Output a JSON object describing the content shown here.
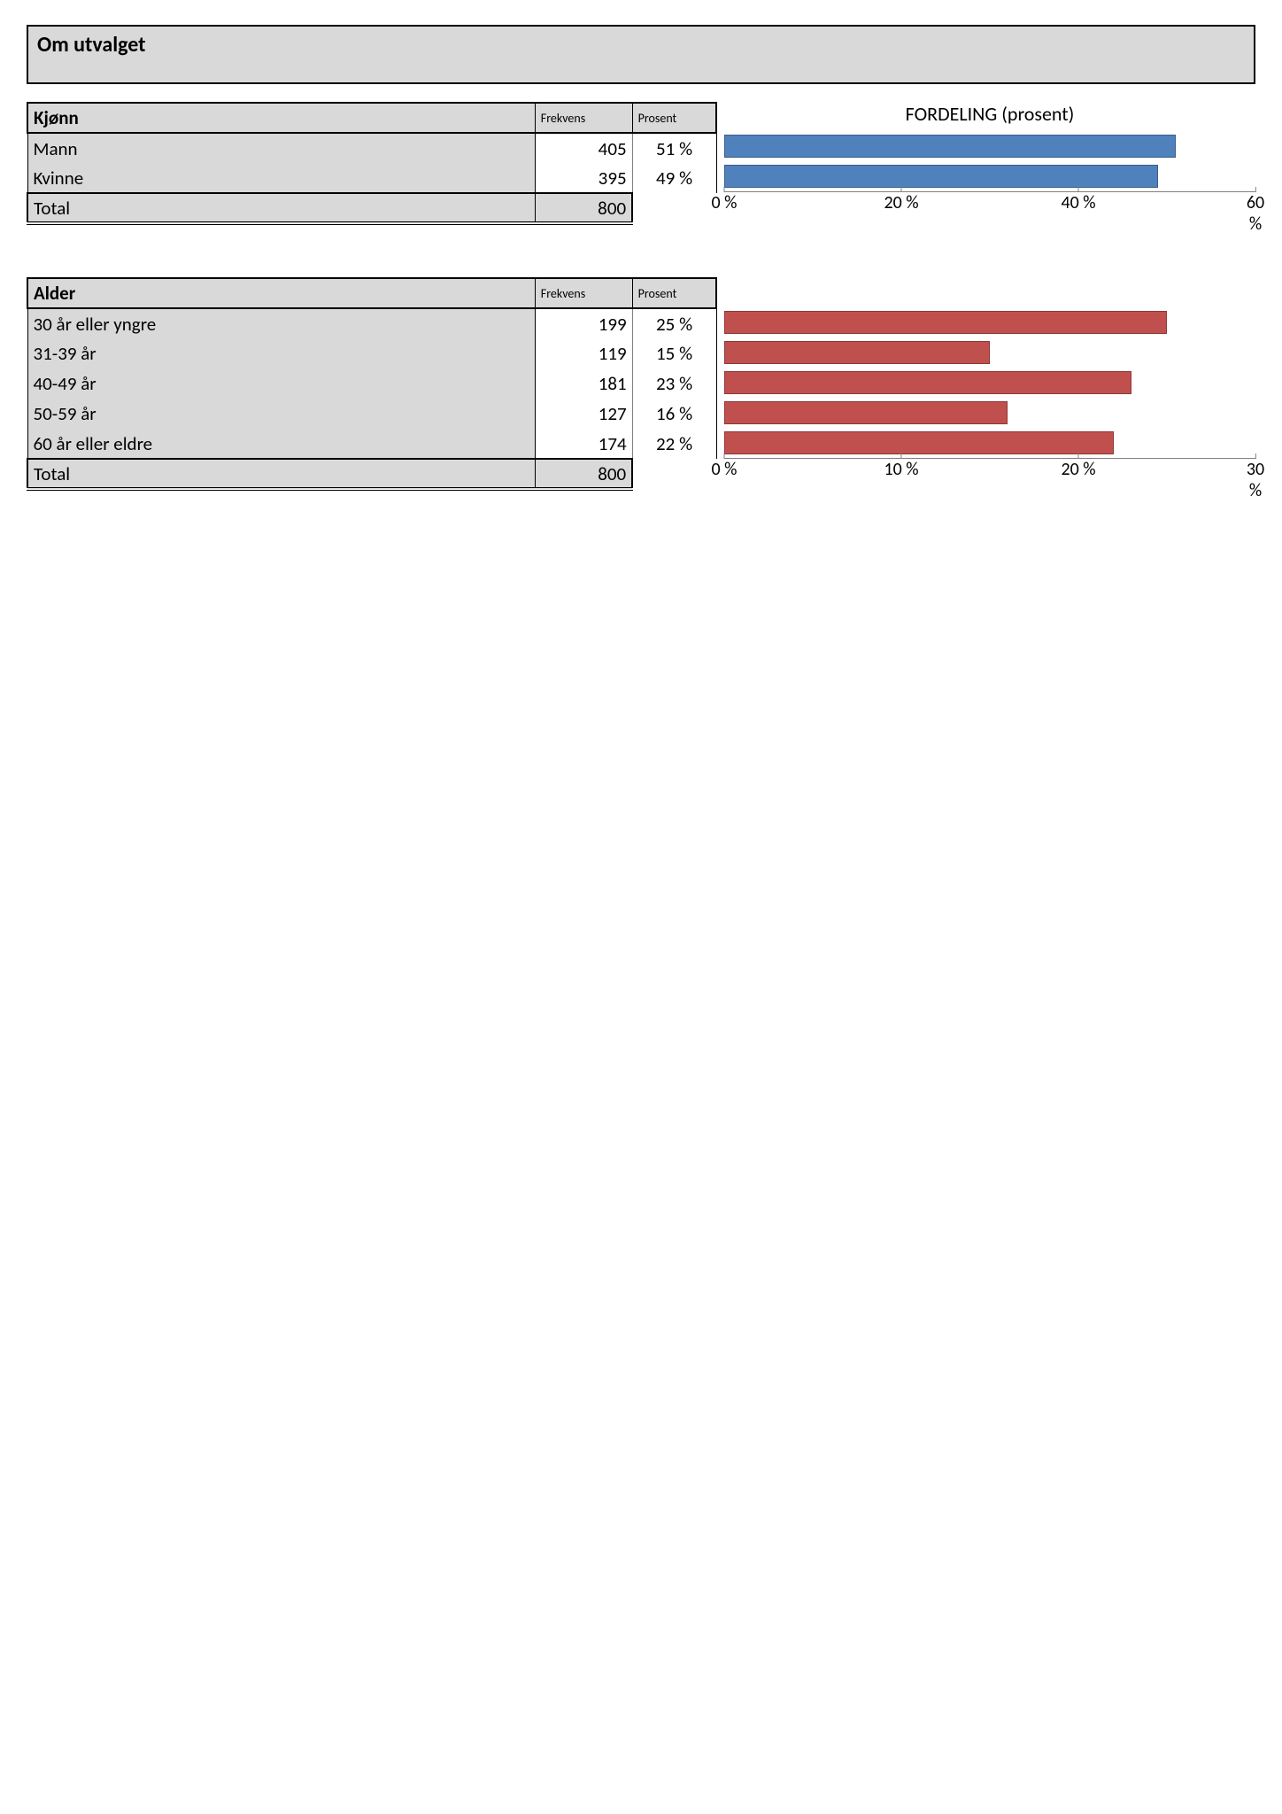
{
  "page_title": "Om utvalget",
  "distribution_title": "FORDELING (prosent)",
  "columns": {
    "freq": "Frekvens",
    "pct": "Prosent",
    "total": "Total"
  },
  "colors": {
    "bar_blue_fill": "#4f81bd",
    "bar_blue_border": "#385d8a",
    "bar_red_fill": "#c0504d",
    "bar_red_border": "#8c3836",
    "header_bg": "#d9d9d9"
  },
  "sections": [
    {
      "title": "Kjønn",
      "rows": [
        {
          "label": "Mann",
          "freq": 405,
          "pct": 51,
          "pct_label": "51 %"
        },
        {
          "label": "Kvinne",
          "freq": 395,
          "pct": 49,
          "pct_label": "49 %"
        }
      ],
      "total_freq": 800,
      "chart": {
        "type": "bar",
        "color_key": "blue",
        "xmax": 60,
        "xticks": [
          0,
          20,
          40,
          60
        ],
        "xtick_labels": [
          "0 %",
          "20 %",
          "40 %",
          "60 %"
        ]
      }
    },
    {
      "title": "Alder",
      "rows": [
        {
          "label": "30 år eller yngre",
          "freq": 199,
          "pct": 25,
          "pct_label": "25 %"
        },
        {
          "label": "31-39 år",
          "freq": 119,
          "pct": 15,
          "pct_label": "15 %"
        },
        {
          "label": "40-49 år",
          "freq": 181,
          "pct": 23,
          "pct_label": "23 %"
        },
        {
          "label": "50-59 år",
          "freq": 127,
          "pct": 16,
          "pct_label": "16 %"
        },
        {
          "label": "60 år eller eldre",
          "freq": 174,
          "pct": 22,
          "pct_label": "22 %"
        }
      ],
      "total_freq": 800,
      "chart": {
        "type": "bar",
        "color_key": "red",
        "xmax": 30,
        "xticks": [
          0,
          10,
          20,
          30
        ],
        "xtick_labels": [
          "0 %",
          "10 %",
          "20 %",
          "30 %"
        ]
      }
    }
  ]
}
